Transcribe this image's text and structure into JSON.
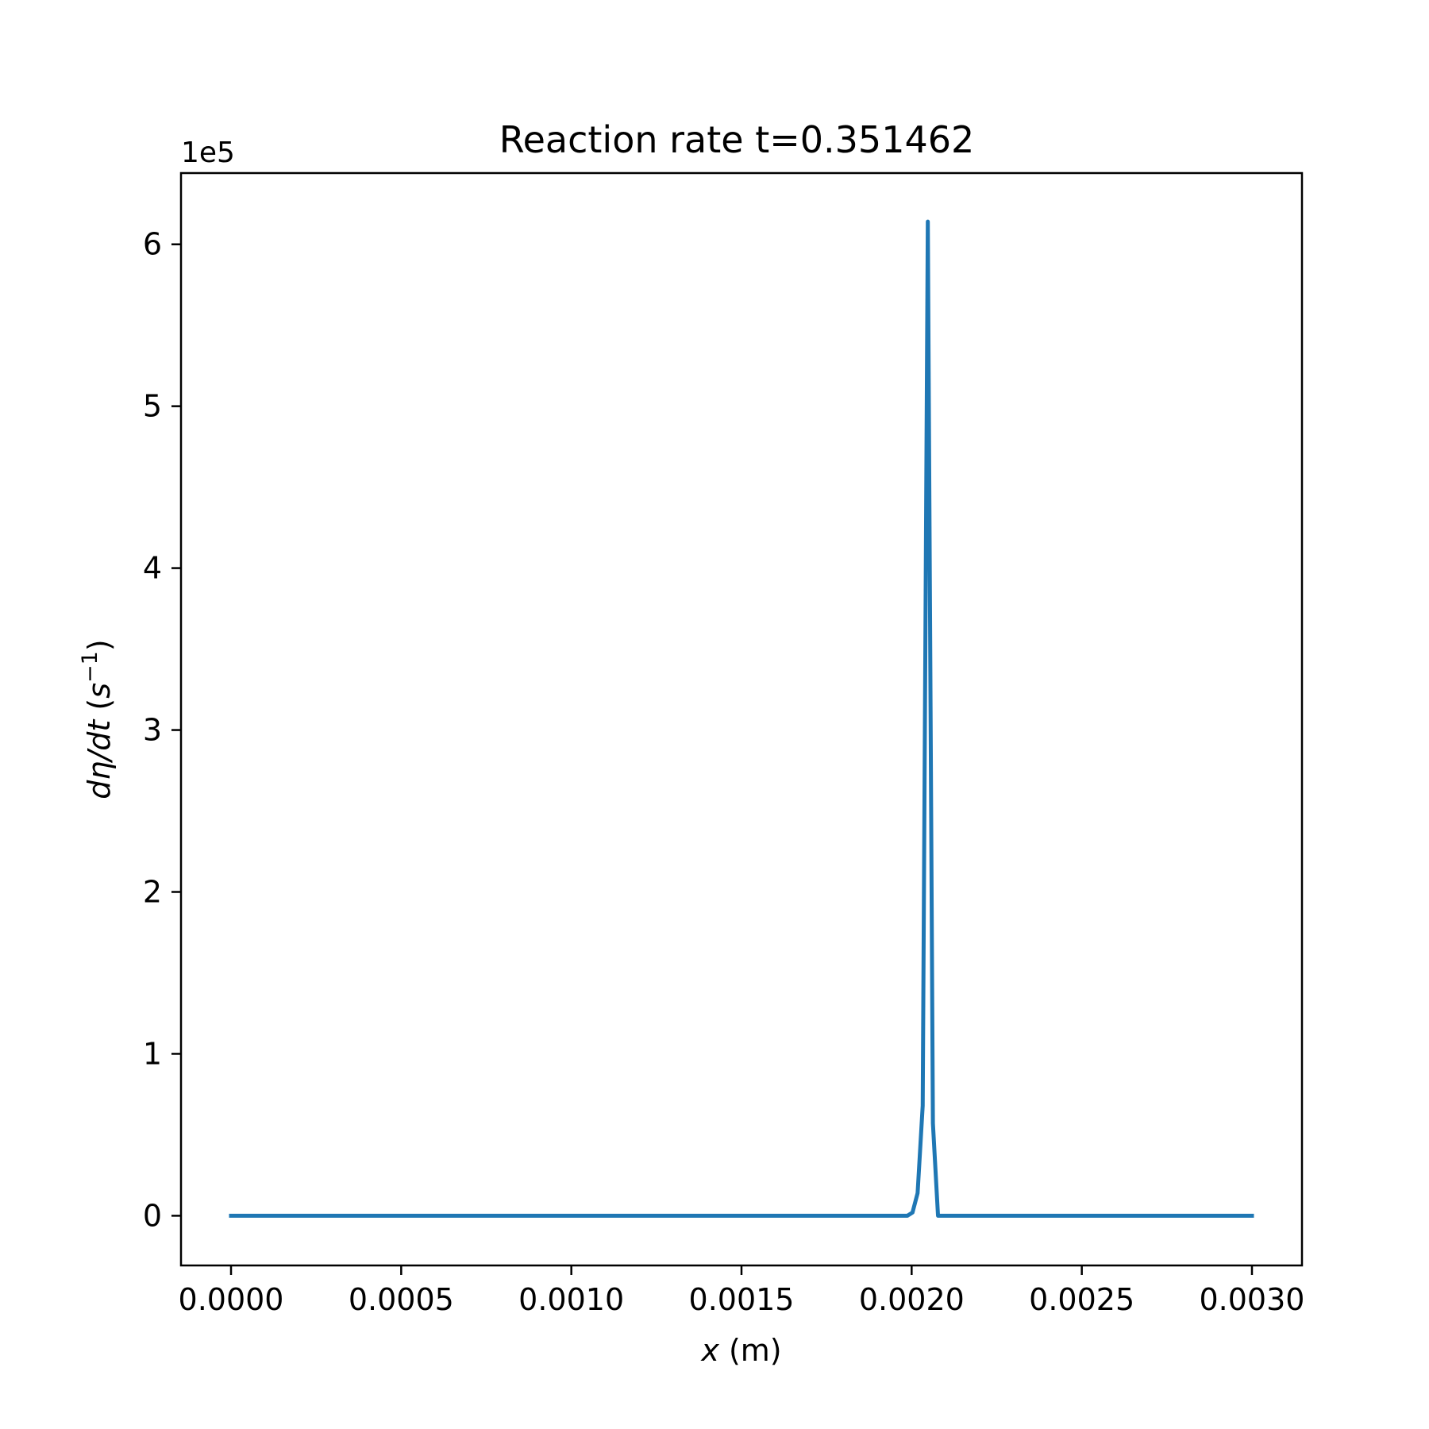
{
  "chart_data": {
    "type": "line",
    "title": "Reaction rate t=0.351462",
    "xlabel": "x (m)",
    "xlabel_var": "x",
    "xlabel_unit": " (m)",
    "ylabel": "dη/dt (s⁻¹)",
    "ylabel_var": "dη/dt",
    "ylabel_unit_open": " (",
    "ylabel_unit_base": "s",
    "ylabel_unit_sup": "−1",
    "ylabel_unit_close": ")",
    "y_offset_text": "1e5",
    "xlim": [
      -0.000147,
      0.000147
    ],
    "xlim_note": "",
    "xrange": [
      -0.000147,
      0.003147
    ],
    "ylim": [
      -0.307,
      6.44
    ],
    "grid": false,
    "legend": "none",
    "x_ticks": [
      {
        "value": 0.0,
        "label": "0.0000"
      },
      {
        "value": 0.0005,
        "label": "0.0005"
      },
      {
        "value": 0.001,
        "label": "0.0010"
      },
      {
        "value": 0.0015,
        "label": "0.0015"
      },
      {
        "value": 0.002,
        "label": "0.0020"
      },
      {
        "value": 0.0025,
        "label": "0.0025"
      },
      {
        "value": 0.003,
        "label": "0.0030"
      }
    ],
    "y_ticks": [
      {
        "value": 0,
        "label": "0"
      },
      {
        "value": 1,
        "label": "1"
      },
      {
        "value": 2,
        "label": "2"
      },
      {
        "value": 3,
        "label": "3"
      },
      {
        "value": 4,
        "label": "4"
      },
      {
        "value": 5,
        "label": "5"
      },
      {
        "value": 6,
        "label": "6"
      }
    ],
    "series": [
      {
        "color": "#1f77b4",
        "x": [
          0.0,
          0.0019,
          0.0019875,
          0.0020025,
          0.0020175,
          0.0020325,
          0.0020475,
          0.0020625,
          0.0020775,
          0.0021,
          0.003
        ],
        "y": [
          0.0,
          0.0,
          0.0,
          0.02,
          0.14,
          0.68,
          6.14,
          0.57,
          0.0,
          0.0,
          0.0
        ]
      }
    ]
  }
}
